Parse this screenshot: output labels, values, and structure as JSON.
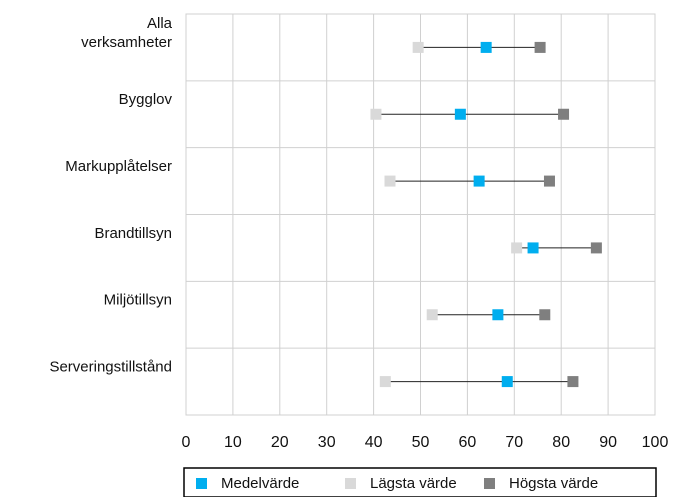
{
  "chart_data": {
    "type": "dot-range",
    "orientation": "horizontal",
    "categories": [
      [
        "Alla",
        "verksamheter"
      ],
      [
        "Bygglov"
      ],
      [
        "Markupplåtelser"
      ],
      [
        "Brandtillsyn"
      ],
      [
        "Miljötillsyn"
      ],
      [
        "Serveringstillstånd"
      ]
    ],
    "series": [
      {
        "name": "Medelvärde",
        "color": "#00aeef",
        "values": [
          64,
          58.5,
          62.5,
          74,
          66.5,
          68.5
        ]
      },
      {
        "name": "Lägsta värde",
        "color": "#d9d9d9",
        "values": [
          49.5,
          40.5,
          43.5,
          70.5,
          52.5,
          42.5
        ]
      },
      {
        "name": "Högsta värde",
        "color": "#7f7f7f",
        "values": [
          75.5,
          80.5,
          77.5,
          87.5,
          76.5,
          82.5
        ]
      }
    ],
    "x_ticks": [
      0,
      10,
      20,
      30,
      40,
      50,
      60,
      70,
      80,
      90,
      100
    ],
    "xlim": [
      0,
      100
    ],
    "grid": true,
    "legend_position": "bottom"
  }
}
